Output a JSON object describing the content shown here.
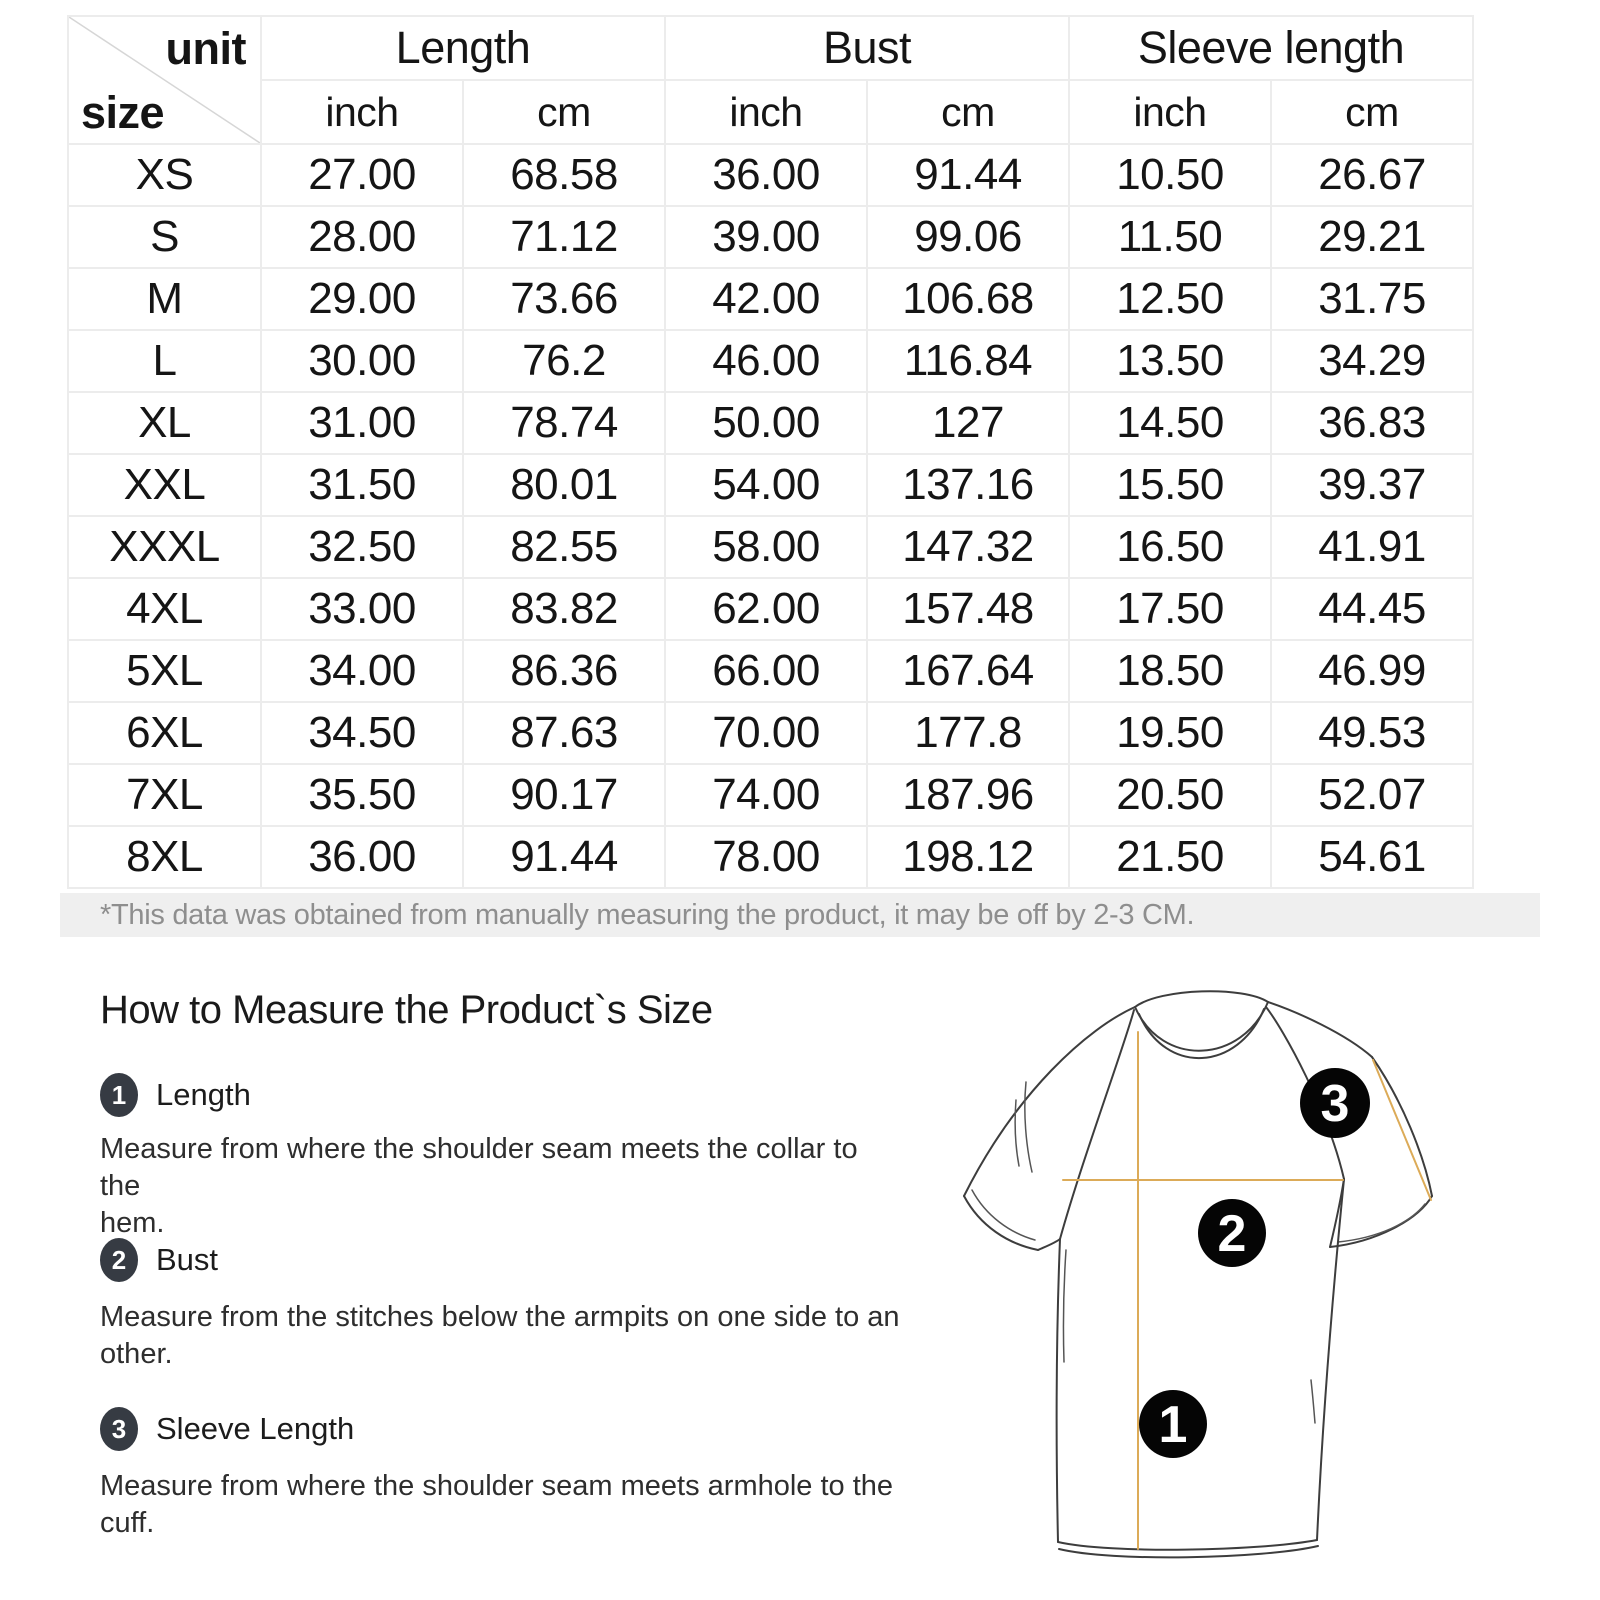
{
  "size_chart": {
    "corner": {
      "top_label": "unit",
      "bottom_label": "size"
    },
    "col_groups": [
      {
        "label": "Length"
      },
      {
        "label": "Bust"
      },
      {
        "label": "Sleeve length"
      }
    ],
    "unit_headers": [
      "inch",
      "cm",
      "inch",
      "cm",
      "inch",
      "cm"
    ],
    "rows": [
      {
        "size": "XS",
        "values": [
          "27.00",
          "68.58",
          "36.00",
          "91.44",
          "10.50",
          "26.67"
        ]
      },
      {
        "size": "S",
        "values": [
          "28.00",
          "71.12",
          "39.00",
          "99.06",
          "11.50",
          "29.21"
        ]
      },
      {
        "size": "M",
        "values": [
          "29.00",
          "73.66",
          "42.00",
          "106.68",
          "12.50",
          "31.75"
        ]
      },
      {
        "size": "L",
        "values": [
          "30.00",
          "76.2",
          "46.00",
          "116.84",
          "13.50",
          "34.29"
        ]
      },
      {
        "size": "XL",
        "values": [
          "31.00",
          "78.74",
          "50.00",
          "127",
          "14.50",
          "36.83"
        ]
      },
      {
        "size": "XXL",
        "values": [
          "31.50",
          "80.01",
          "54.00",
          "137.16",
          "15.50",
          "39.37"
        ]
      },
      {
        "size": "XXXL",
        "values": [
          "32.50",
          "82.55",
          "58.00",
          "147.32",
          "16.50",
          "41.91"
        ]
      },
      {
        "size": "4XL",
        "values": [
          "33.00",
          "83.82",
          "62.00",
          "157.48",
          "17.50",
          "44.45"
        ]
      },
      {
        "size": "5XL",
        "values": [
          "34.00",
          "86.36",
          "66.00",
          "167.64",
          "18.50",
          "46.99"
        ]
      },
      {
        "size": "6XL",
        "values": [
          "34.50",
          "87.63",
          "70.00",
          "177.8",
          "19.50",
          "49.53"
        ]
      },
      {
        "size": "7XL",
        "values": [
          "35.50",
          "90.17",
          "74.00",
          "187.96",
          "20.50",
          "52.07"
        ]
      },
      {
        "size": "8XL",
        "values": [
          "36.00",
          "91.44",
          "78.00",
          "198.12",
          "21.50",
          "54.61"
        ]
      }
    ],
    "footnote": "*This data was obtained from manually measuring the product, it may be off by 2-3 CM."
  },
  "how_to": {
    "title": "How to Measure the Product`s Size",
    "items": [
      {
        "num": "1",
        "label": "Length",
        "desc_lines": [
          "Measure from where the shoulder seam meets the collar to the",
          "hem."
        ]
      },
      {
        "num": "2",
        "label": "Bust",
        "desc_lines": [
          "Measure from the stitches below the armpits on one side to an",
          "other."
        ]
      },
      {
        "num": "3",
        "label": "Sleeve Length",
        "desc_lines": [
          "Measure from where the shoulder seam meets armhole to the",
          "cuff."
        ]
      }
    ]
  },
  "diagram": {
    "markers": [
      "1",
      "2",
      "3"
    ],
    "measure_line_color": "#dcab58",
    "outline_color": "#3d3d3d",
    "marker_fill": "#050505"
  }
}
